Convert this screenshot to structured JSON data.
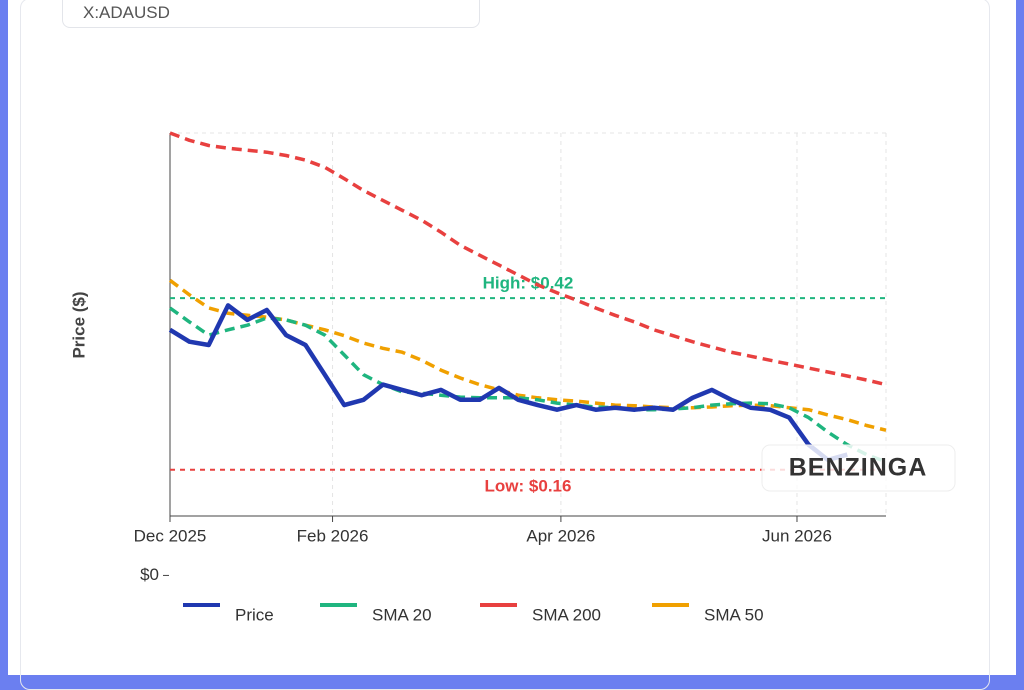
{
  "header": {
    "symbol": "X:ADAUSD"
  },
  "chart_data": {
    "type": "line",
    "y_label": "Price ($)",
    "watermark": "BENZINGA",
    "x": [
      "2025-12-21",
      "2025-12-26",
      "2025-12-31",
      "2026-01-05",
      "2026-01-10",
      "2026-01-15",
      "2026-01-20",
      "2026-01-25",
      "2026-01-30",
      "2026-02-04",
      "2026-02-09",
      "2026-02-14",
      "2026-02-19",
      "2026-02-24",
      "2026-03-01",
      "2026-03-06",
      "2026-03-11",
      "2026-03-16",
      "2026-03-21",
      "2026-03-26",
      "2026-03-31",
      "2026-04-05",
      "2026-04-10",
      "2026-04-15",
      "2026-04-20",
      "2026-04-25",
      "2026-04-30",
      "2026-05-05",
      "2026-05-10",
      "2026-05-15",
      "2026-05-20",
      "2026-05-25",
      "2026-05-30",
      "2026-06-04",
      "2026-06-09",
      "2026-06-14",
      "2026-06-19",
      "2026-06-24"
    ],
    "xlim": [
      "2025-12-21",
      "2026-06-24"
    ],
    "xticks": [
      {
        "value": "2025-12-21",
        "label": "Dec 2025"
      },
      {
        "value": "2026-02-01",
        "label": "Feb 2026"
      },
      {
        "value": "2026-04-01",
        "label": "Apr 2026"
      },
      {
        "value": "2026-06-01",
        "label": "Jun 2026"
      }
    ],
    "ylim": [
      0.09,
      0.67
    ],
    "yticks": [
      {
        "value": 0,
        "label": "$0"
      }
    ],
    "grid": true,
    "series": [
      {
        "name": "Price",
        "color": "#2038b0",
        "dash": false,
        "values": [
          0.372,
          0.354,
          0.349,
          0.409,
          0.387,
          0.402,
          0.364,
          0.349,
          0.304,
          0.258,
          0.266,
          0.289,
          0.281,
          0.273,
          0.281,
          0.266,
          0.266,
          0.284,
          0.266,
          0.258,
          0.251,
          0.258,
          0.251,
          0.254,
          0.251,
          0.254,
          0.251,
          0.269,
          0.281,
          0.266,
          0.254,
          0.251,
          0.239,
          0.198,
          0.175,
          0.183,
          null,
          null
        ]
      },
      {
        "name": "SMA 20",
        "color": "#1fb57f",
        "dash": true,
        "values": [
          0.405,
          0.384,
          0.364,
          0.372,
          0.379,
          0.39,
          0.387,
          0.379,
          0.364,
          0.334,
          0.304,
          0.289,
          0.278,
          0.276,
          0.273,
          0.27,
          0.269,
          0.269,
          0.269,
          0.266,
          0.261,
          0.258,
          0.255,
          0.254,
          0.251,
          0.251,
          0.252,
          0.254,
          0.258,
          0.26,
          0.261,
          0.26,
          0.254,
          0.239,
          0.217,
          0.198,
          0.183,
          0.172
        ]
      },
      {
        "name": "SMA 200",
        "color": "#e8403f",
        "dash": true,
        "values": [
          0.67,
          0.659,
          0.651,
          0.647,
          0.644,
          0.641,
          0.636,
          0.629,
          0.618,
          0.601,
          0.583,
          0.568,
          0.553,
          0.538,
          0.52,
          0.5,
          0.485,
          0.47,
          0.455,
          0.44,
          0.428,
          0.417,
          0.405,
          0.394,
          0.384,
          0.372,
          0.363,
          0.354,
          0.346,
          0.338,
          0.332,
          0.326,
          0.32,
          0.314,
          0.308,
          0.302,
          0.296,
          0.289
        ]
      },
      {
        "name": "SMA 50",
        "color": "#f0a000",
        "dash": true,
        "values": [
          0.447,
          0.425,
          0.405,
          0.397,
          0.394,
          0.391,
          0.387,
          0.379,
          0.372,
          0.363,
          0.352,
          0.344,
          0.338,
          0.326,
          0.311,
          0.299,
          0.289,
          0.281,
          0.273,
          0.269,
          0.266,
          0.264,
          0.261,
          0.258,
          0.257,
          0.255,
          0.254,
          0.254,
          0.255,
          0.257,
          0.258,
          0.257,
          0.254,
          0.251,
          0.243,
          0.236,
          0.227,
          0.22
        ]
      }
    ],
    "annotations": [
      {
        "label": "High: $0.42",
        "value": 0.42,
        "color": "#1fb57f"
      },
      {
        "label": "Low: $0.16",
        "value": 0.16,
        "color": "#e8403f"
      }
    ]
  }
}
